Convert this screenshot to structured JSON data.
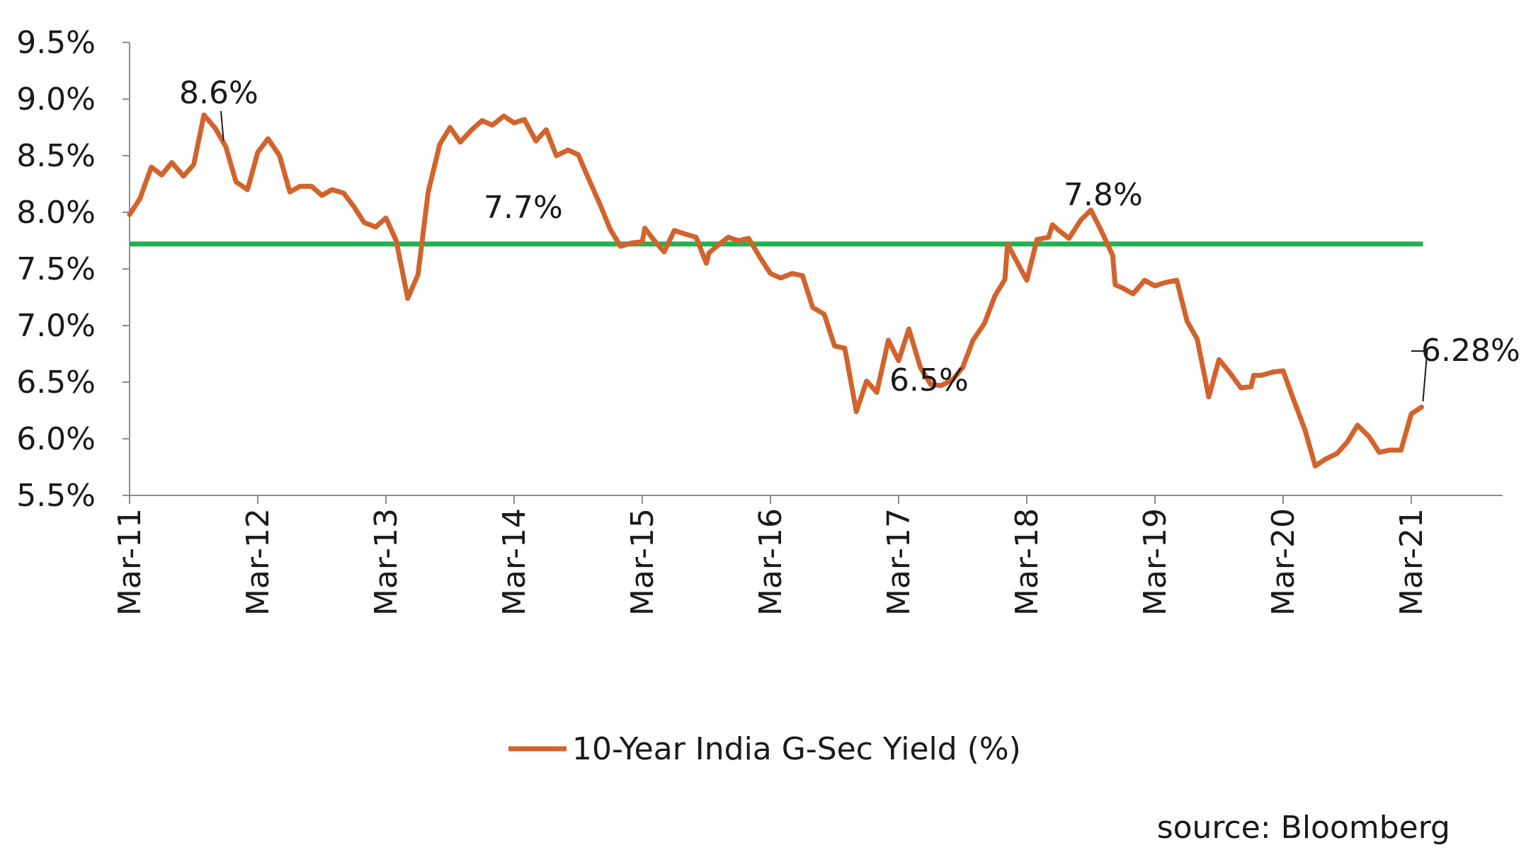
{
  "chart_data": {
    "type": "line",
    "title": "",
    "xlabel": "",
    "ylabel": "",
    "ylim": [
      5.5,
      9.5
    ],
    "y_ticks": [
      5.5,
      6.0,
      6.5,
      7.0,
      7.5,
      8.0,
      8.5,
      9.0,
      9.5
    ],
    "y_tick_labels": [
      "5.5%",
      "6.0%",
      "6.5%",
      "7.0%",
      "7.5%",
      "8.0%",
      "8.5%",
      "9.0%",
      "9.5%"
    ],
    "x_tick_labels": [
      "Mar-11",
      "Mar-12",
      "Mar-13",
      "Mar-14",
      "Mar-15",
      "Mar-16",
      "Mar-17",
      "Mar-18",
      "Mar-19",
      "Mar-20",
      "Mar-21"
    ],
    "x_ticks": [
      2011.0,
      2012.0,
      2013.0,
      2014.0,
      2015.0,
      2016.0,
      2017.0,
      2018.0,
      2019.0,
      2020.0,
      2021.0
    ],
    "xlim": [
      2011.0,
      2021.75
    ],
    "grid": false,
    "legend_position": "bottom-center",
    "series": [
      {
        "name": "10-Year India G-Sec Yield (%)",
        "color": "#D2632C",
        "points": [
          [
            2011.0,
            7.98
          ],
          [
            2011.08,
            8.12
          ],
          [
            2011.17,
            8.4
          ],
          [
            2011.25,
            8.33
          ],
          [
            2011.33,
            8.44
          ],
          [
            2011.42,
            8.32
          ],
          [
            2011.5,
            8.42
          ],
          [
            2011.58,
            8.86
          ],
          [
            2011.67,
            8.74
          ],
          [
            2011.75,
            8.58
          ],
          [
            2011.83,
            8.27
          ],
          [
            2011.92,
            8.2
          ],
          [
            2012.0,
            8.53
          ],
          [
            2012.08,
            8.65
          ],
          [
            2012.17,
            8.5
          ],
          [
            2012.25,
            8.18
          ],
          [
            2012.33,
            8.23
          ],
          [
            2012.42,
            8.23
          ],
          [
            2012.5,
            8.15
          ],
          [
            2012.58,
            8.2
          ],
          [
            2012.67,
            8.17
          ],
          [
            2012.75,
            8.05
          ],
          [
            2012.83,
            7.91
          ],
          [
            2012.92,
            7.87
          ],
          [
            2013.0,
            7.95
          ],
          [
            2013.08,
            7.75
          ],
          [
            2013.17,
            7.24
          ],
          [
            2013.25,
            7.45
          ],
          [
            2013.33,
            8.18
          ],
          [
            2013.42,
            8.6
          ],
          [
            2013.5,
            8.75
          ],
          [
            2013.58,
            8.62
          ],
          [
            2013.67,
            8.73
          ],
          [
            2013.75,
            8.81
          ],
          [
            2013.83,
            8.77
          ],
          [
            2013.92,
            8.85
          ],
          [
            2014.0,
            8.79
          ],
          [
            2014.08,
            8.82
          ],
          [
            2014.17,
            8.63
          ],
          [
            2014.25,
            8.73
          ],
          [
            2014.33,
            8.5
          ],
          [
            2014.42,
            8.55
          ],
          [
            2014.5,
            8.51
          ],
          [
            2014.58,
            8.3
          ],
          [
            2014.67,
            8.07
          ],
          [
            2014.75,
            7.85
          ],
          [
            2014.83,
            7.7
          ],
          [
            2014.92,
            7.73
          ],
          [
            2015.0,
            7.74
          ],
          [
            2015.02,
            7.86
          ],
          [
            2015.08,
            7.77
          ],
          [
            2015.17,
            7.65
          ],
          [
            2015.25,
            7.84
          ],
          [
            2015.33,
            7.81
          ],
          [
            2015.42,
            7.78
          ],
          [
            2015.5,
            7.55
          ],
          [
            2015.52,
            7.64
          ],
          [
            2015.58,
            7.7
          ],
          [
            2015.67,
            7.78
          ],
          [
            2015.75,
            7.75
          ],
          [
            2015.83,
            7.77
          ],
          [
            2015.92,
            7.6
          ],
          [
            2016.0,
            7.46
          ],
          [
            2016.08,
            7.42
          ],
          [
            2016.17,
            7.46
          ],
          [
            2016.25,
            7.44
          ],
          [
            2016.33,
            7.16
          ],
          [
            2016.42,
            7.1
          ],
          [
            2016.5,
            6.82
          ],
          [
            2016.58,
            6.8
          ],
          [
            2016.67,
            6.24
          ],
          [
            2016.75,
            6.51
          ],
          [
            2016.83,
            6.41
          ],
          [
            2016.92,
            6.87
          ],
          [
            2017.0,
            6.69
          ],
          [
            2017.08,
            6.97
          ],
          [
            2017.17,
            6.63
          ],
          [
            2017.25,
            6.48
          ],
          [
            2017.33,
            6.47
          ],
          [
            2017.42,
            6.52
          ],
          [
            2017.5,
            6.63
          ],
          [
            2017.58,
            6.87
          ],
          [
            2017.67,
            7.02
          ],
          [
            2017.75,
            7.26
          ],
          [
            2017.83,
            7.41
          ],
          [
            2017.85,
            7.72
          ],
          [
            2017.92,
            7.57
          ],
          [
            2018.0,
            7.4
          ],
          [
            2018.08,
            7.76
          ],
          [
            2018.17,
            7.78
          ],
          [
            2018.2,
            7.89
          ],
          [
            2018.25,
            7.84
          ],
          [
            2018.33,
            7.77
          ],
          [
            2018.42,
            7.93
          ],
          [
            2018.5,
            8.02
          ],
          [
            2018.58,
            7.84
          ],
          [
            2018.67,
            7.62
          ],
          [
            2018.69,
            7.36
          ],
          [
            2018.75,
            7.33
          ],
          [
            2018.83,
            7.28
          ],
          [
            2018.92,
            7.4
          ],
          [
            2019.0,
            7.35
          ],
          [
            2019.08,
            7.38
          ],
          [
            2019.17,
            7.4
          ],
          [
            2019.25,
            7.04
          ],
          [
            2019.33,
            6.88
          ],
          [
            2019.42,
            6.37
          ],
          [
            2019.5,
            6.7
          ],
          [
            2019.58,
            6.59
          ],
          [
            2019.67,
            6.45
          ],
          [
            2019.75,
            6.46
          ],
          [
            2019.77,
            6.56
          ],
          [
            2019.83,
            6.56
          ],
          [
            2019.92,
            6.59
          ],
          [
            2020.0,
            6.6
          ],
          [
            2020.08,
            6.35
          ],
          [
            2020.17,
            6.08
          ],
          [
            2020.25,
            5.76
          ],
          [
            2020.33,
            5.82
          ],
          [
            2020.42,
            5.87
          ],
          [
            2020.5,
            5.97
          ],
          [
            2020.58,
            6.12
          ],
          [
            2020.67,
            6.02
          ],
          [
            2020.75,
            5.88
          ],
          [
            2020.83,
            5.9
          ],
          [
            2020.92,
            5.9
          ],
          [
            2021.0,
            6.22
          ],
          [
            2021.08,
            6.28
          ]
        ]
      }
    ],
    "reference_lines": [
      {
        "value": 7.72,
        "label": "7.7%",
        "color": "#22B24C",
        "x_start": 2011.0,
        "x_end": 2021.08
      }
    ],
    "annotations": [
      {
        "text": "8.6%",
        "anchor": [
          2011.75,
          8.58
        ]
      },
      {
        "text": "7.7%"
      },
      {
        "text": "6.5%"
      },
      {
        "text": "7.8%"
      },
      {
        "text": "6.28%",
        "anchor": [
          2021.08,
          6.28
        ]
      }
    ],
    "source": "source: Bloomberg"
  }
}
